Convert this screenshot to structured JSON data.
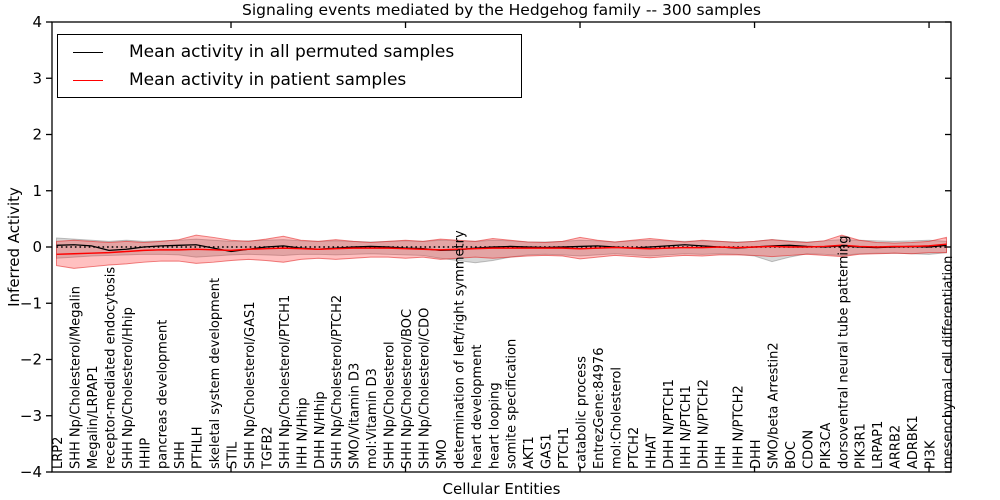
{
  "chart_data": {
    "type": "line",
    "title": "Signaling events mediated by the Hedgehog family -- 300 samples",
    "xlabel": "Cellular Entities",
    "ylabel": "Inferred Activity",
    "ylim": [
      -4,
      4
    ],
    "y_ticks": [
      4,
      3,
      2,
      1,
      0,
      -1,
      -2,
      -3,
      -4
    ],
    "x_major_tick_indices": [
      10,
      20,
      30,
      40,
      50
    ],
    "grid": false,
    "legend_position": "upper left",
    "zero_reference_line": {
      "style": "dotted",
      "color": "#000000",
      "y": 0
    },
    "categories": [
      "LRP2",
      "SHH Np/Cholesterol/Megalin",
      "Megalin/LRPAP1",
      "receptor-mediated endocytosis",
      "SHH Np/Cholesterol/Hhip",
      "HHIP",
      "pancreas development",
      "SHH",
      "PTHLH",
      "skeletal system development",
      "STIL",
      "SHH Np/Cholesterol/GAS1",
      "TGFB2",
      "SHH Np/Cholesterol/PTCH1",
      "IHH N/Hhip",
      "DHH N/Hhip",
      "SHH Np/Cholesterol/PTCH2",
      "SMO/Vitamin D3",
      "mol:Vitamin D3",
      "SHH Np/Cholesterol",
      "SHH Np/Cholesterol/BOC",
      "SHH Np/Cholesterol/CDO",
      "SMO",
      "determination of left/right symmetry",
      "heart development",
      "heart looping",
      "somite specification",
      "AKT1",
      "GAS1",
      "PTCH1",
      "catabolic process",
      "EntrezGene:84976",
      "mol:Cholesterol",
      "PTCH2",
      "HHAT",
      "DHH N/PTCH1",
      "IHH N/PTCH1",
      "DHH N/PTCH2",
      "IHH",
      "IHH N/PTCH2",
      "DHH",
      "SMO/beta Arrestin2",
      "BOC",
      "CDON",
      "PIK3CA",
      "dorsoventral neural tube patterning",
      "PIK3R1",
      "LRPAP1",
      "ARRB2",
      "ADRBK1",
      "PI3K",
      "mesenchymal cell differentiation"
    ],
    "series": [
      {
        "name": "Mean activity in all permuted samples",
        "color": "#000000",
        "band_color": "#808080",
        "values": [
          0.03,
          0.04,
          0.02,
          -0.06,
          -0.04,
          0,
          0.02,
          0.03,
          0.04,
          -0.02,
          -0.08,
          -0.04,
          0,
          0.02,
          -0.02,
          -0.04,
          -0.02,
          0,
          0.01,
          0,
          -0.02,
          -0.03,
          -0.06,
          -0.05,
          -0.02,
          0,
          0.01,
          0,
          -0.01,
          0,
          0.01,
          0.02,
          0,
          -0.02,
          0,
          0.02,
          0.04,
          0.02,
          0,
          -0.02,
          0,
          0.02,
          0.03,
          0.01,
          0,
          0.02,
          0,
          -0.01,
          0,
          0.01,
          0,
          0.03
        ],
        "band_upper": [
          0.16,
          0.14,
          0.12,
          0.1,
          0.12,
          0.1,
          0.11,
          0.12,
          0.14,
          0.12,
          0.1,
          0.11,
          0.12,
          0.13,
          0.11,
          0.1,
          0.11,
          0.1,
          0.09,
          0.1,
          0.11,
          0.1,
          0.12,
          0.11,
          0.1,
          0.12,
          0.11,
          0.09,
          0.09,
          0.1,
          0.12,
          0.11,
          0.09,
          0.11,
          0.12,
          0.11,
          0.1,
          0.11,
          0.1,
          0.09,
          0.1,
          0.13,
          0.11,
          0.09,
          0.11,
          0.13,
          0.12,
          0.11,
          0.1,
          0.11,
          0.12,
          0.1
        ],
        "band_lower": [
          -0.2,
          -0.18,
          -0.16,
          -0.15,
          -0.14,
          -0.13,
          -0.13,
          -0.14,
          -0.18,
          -0.16,
          -0.14,
          -0.13,
          -0.14,
          -0.15,
          -0.13,
          -0.13,
          -0.14,
          -0.13,
          -0.12,
          -0.13,
          -0.14,
          -0.15,
          -0.2,
          -0.24,
          -0.28,
          -0.24,
          -0.18,
          -0.14,
          -0.13,
          -0.14,
          -0.16,
          -0.14,
          -0.12,
          -0.14,
          -0.16,
          -0.14,
          -0.12,
          -0.13,
          -0.12,
          -0.13,
          -0.16,
          -0.26,
          -0.18,
          -0.12,
          -0.13,
          -0.15,
          -0.12,
          -0.11,
          -0.11,
          -0.12,
          -0.13,
          -0.1
        ]
      },
      {
        "name": "Mean activity in patient samples",
        "color": "#ff0000",
        "band_color": "#ff4040",
        "values": [
          -0.13,
          -0.12,
          -0.11,
          -0.1,
          -0.08,
          -0.06,
          -0.05,
          -0.05,
          -0.04,
          -0.05,
          -0.06,
          -0.04,
          -0.03,
          -0.02,
          -0.03,
          -0.04,
          -0.03,
          -0.02,
          -0.02,
          -0.02,
          -0.03,
          -0.04,
          -0.05,
          -0.04,
          -0.03,
          -0.02,
          -0.02,
          -0.02,
          -0.02,
          -0.02,
          -0.03,
          -0.02,
          -0.01,
          -0.02,
          -0.03,
          -0.02,
          -0.01,
          -0.01,
          0,
          -0.01,
          0,
          0.01,
          0,
          0,
          0.01,
          0.03,
          0.01,
          0,
          0.01,
          0.01,
          0.02,
          0.05
        ],
        "band_upper": [
          0.1,
          0.12,
          0.1,
          0.08,
          0.1,
          0.08,
          0.1,
          0.13,
          0.21,
          0.17,
          0.12,
          0.1,
          0.14,
          0.19,
          0.12,
          0.1,
          0.13,
          0.1,
          0.08,
          0.1,
          0.12,
          0.1,
          0.14,
          0.12,
          0.1,
          0.15,
          0.12,
          0.09,
          0.08,
          0.1,
          0.17,
          0.12,
          0.09,
          0.12,
          0.15,
          0.12,
          0.09,
          0.12,
          0.1,
          0.08,
          0.1,
          0.13,
          0.1,
          0.08,
          0.11,
          0.21,
          0.12,
          0.08,
          0.07,
          0.08,
          0.1,
          0.17
        ],
        "band_lower": [
          -0.33,
          -0.38,
          -0.35,
          -0.32,
          -0.3,
          -0.27,
          -0.25,
          -0.25,
          -0.29,
          -0.27,
          -0.24,
          -0.22,
          -0.24,
          -0.27,
          -0.22,
          -0.2,
          -0.22,
          -0.2,
          -0.18,
          -0.18,
          -0.2,
          -0.18,
          -0.22,
          -0.2,
          -0.18,
          -0.2,
          -0.18,
          -0.16,
          -0.15,
          -0.16,
          -0.21,
          -0.18,
          -0.15,
          -0.17,
          -0.19,
          -0.17,
          -0.15,
          -0.16,
          -0.14,
          -0.14,
          -0.15,
          -0.17,
          -0.15,
          -0.13,
          -0.15,
          -0.17,
          -0.13,
          -0.12,
          -0.11,
          -0.12,
          -0.1,
          -0.1
        ]
      }
    ]
  }
}
